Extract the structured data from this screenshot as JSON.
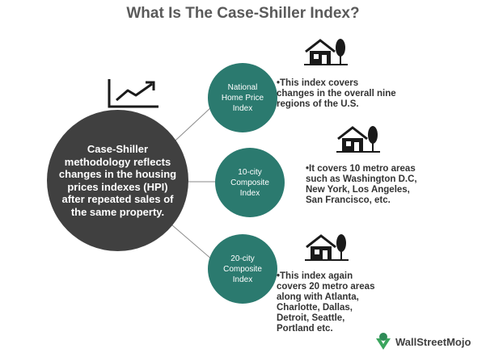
{
  "title": "What Is The Case-Shiller Index?",
  "center_text": "Case-Shiller methodology reflects changes in the housing prices indexes (HPI) after repeated sales of the same property.",
  "nodes": [
    {
      "label": "National Home Price Index",
      "desc": "•This index covers changes in the overall nine regions of the U.S."
    },
    {
      "label": "10-city Composite Index",
      "desc": "•It covers 10 metro areas such as Washington D.C, New York, Los Angeles, San Francisco, etc."
    },
    {
      "label": "20-city Composite Index",
      "desc": "•This index again covers 20 metro areas along with Atlanta, Charlotte, Dallas, Detroit, Seattle, Portland etc."
    }
  ],
  "logo_text": "WallStreetMojo",
  "colors": {
    "node": "#2b7a6f",
    "center": "#404040",
    "title": "#5a5a5a"
  },
  "icons": [
    "line-chart-icon",
    "house-icon",
    "wallstreetmojo-logo-icon"
  ]
}
